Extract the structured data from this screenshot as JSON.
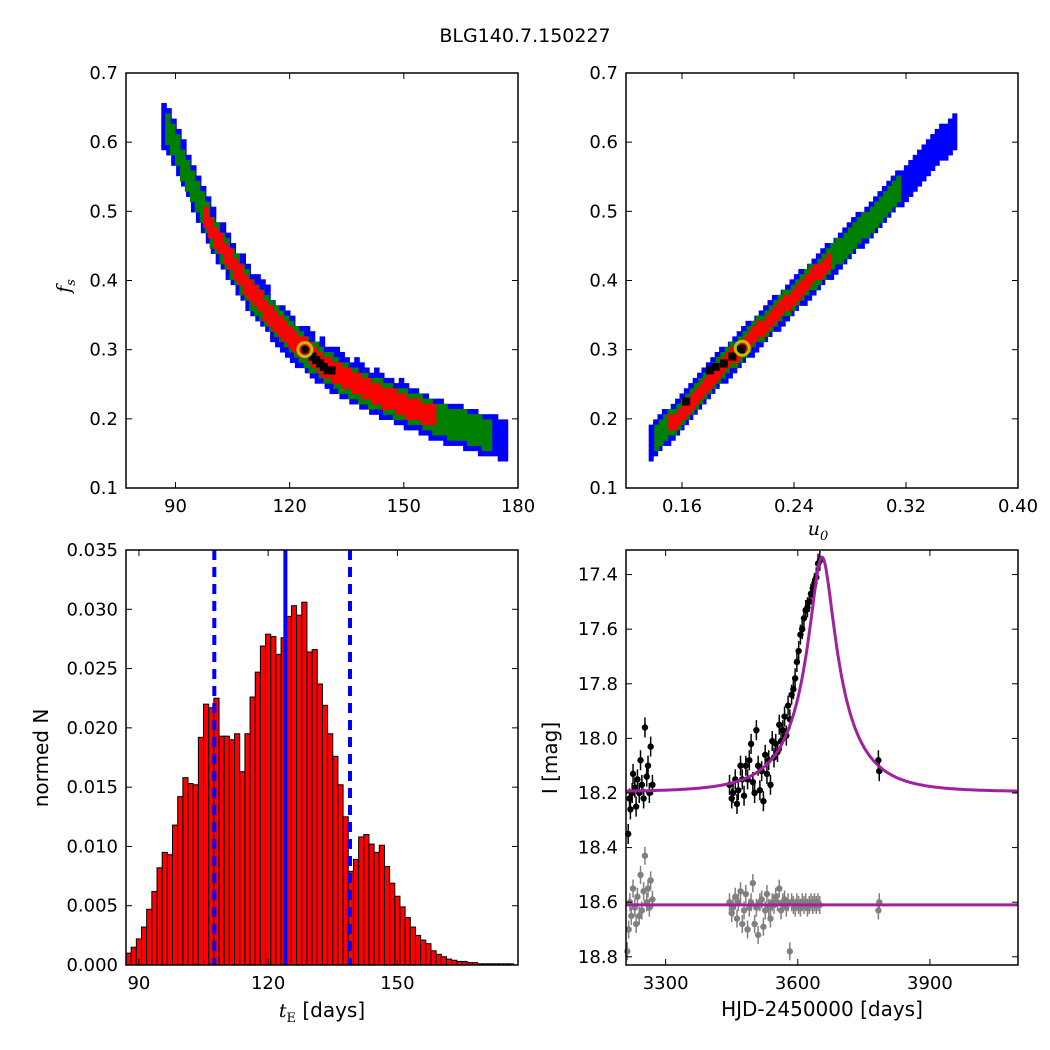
{
  "title": "BLG140.7.150227",
  "chart_data": [
    {
      "id": "tE_fs",
      "type": "heatmap",
      "xlim": [
        77,
        180
      ],
      "ylim": [
        0.1,
        0.7
      ],
      "xticks": [
        "90",
        "120",
        "150",
        "180"
      ],
      "xtick_values": [
        90,
        120,
        150,
        180
      ],
      "yticks": [
        "0.1",
        "0.2",
        "0.3",
        "0.4",
        "0.5",
        "0.6",
        "0.7"
      ],
      "ytick_values": [
        0.1,
        0.2,
        0.3,
        0.4,
        0.5,
        0.6,
        0.7
      ],
      "xlabel": "",
      "ylabel_main": "f",
      "ylabel_sub": "s",
      "confidence_colors": {
        "1sigma": "#ff0000",
        "2sigma": "#008000",
        "3sigma": "#0000ff",
        "best": "#000000"
      },
      "ridge": [
        [
          88,
          0.62
        ],
        [
          100,
          0.47
        ],
        [
          110,
          0.385
        ],
        [
          120,
          0.32
        ],
        [
          130,
          0.275
        ],
        [
          140,
          0.245
        ],
        [
          150,
          0.222
        ],
        [
          160,
          0.2
        ],
        [
          170,
          0.183
        ],
        [
          178,
          0.17
        ]
      ],
      "widths": {
        "sigma1": 0.013,
        "sigma2": 0.021,
        "sigma3": 0.03
      },
      "red_range": [
        98,
        158
      ],
      "green_range": [
        88,
        173
      ],
      "blue_range": [
        87,
        178
      ],
      "black_points": [
        [
          126,
          0.29
        ],
        [
          127,
          0.285
        ],
        [
          128,
          0.28
        ],
        [
          129,
          0.275
        ],
        [
          130,
          0.27
        ],
        [
          131,
          0.27
        ]
      ],
      "best_fit": [
        124,
        0.3
      ],
      "best_fit_colors": {
        "ring": "#bfbf00",
        "dot": "#000000"
      }
    },
    {
      "id": "u0_fs",
      "type": "heatmap",
      "xlim": [
        0.12,
        0.4
      ],
      "ylim": [
        0.1,
        0.7
      ],
      "xticks": [
        "0.16",
        "0.24",
        "0.32",
        "0.40"
      ],
      "xtick_values": [
        0.16,
        0.24,
        0.32,
        0.4
      ],
      "yticks": [
        "0.1",
        "0.2",
        "0.3",
        "0.4",
        "0.5",
        "0.6",
        "0.7"
      ],
      "ytick_values": [
        0.1,
        0.2,
        0.3,
        0.4,
        0.5,
        0.6,
        0.7
      ],
      "xlabel_main": "u",
      "xlabel_sub": "0",
      "ridge": [
        [
          0.138,
          0.17
        ],
        [
          0.16,
          0.21
        ],
        [
          0.18,
          0.26
        ],
        [
          0.2,
          0.3
        ],
        [
          0.22,
          0.34
        ],
        [
          0.24,
          0.38
        ],
        [
          0.26,
          0.42
        ],
        [
          0.28,
          0.46
        ],
        [
          0.3,
          0.5
        ],
        [
          0.32,
          0.545
        ],
        [
          0.34,
          0.59
        ],
        [
          0.356,
          0.62
        ]
      ],
      "widths": {
        "sigma1": 0.01,
        "sigma2": 0.017,
        "sigma3": 0.025
      },
      "red_range": [
        0.152,
        0.266
      ],
      "green_range": [
        0.142,
        0.316
      ],
      "blue_range": [
        0.138,
        0.358
      ],
      "black_points": [
        [
          0.163,
          0.225
        ],
        [
          0.18,
          0.27
        ],
        [
          0.184,
          0.275
        ],
        [
          0.19,
          0.28
        ],
        [
          0.196,
          0.29
        ],
        [
          0.202,
          0.3
        ]
      ],
      "best_fit": [
        0.203,
        0.302
      ],
      "best_fit_colors": {
        "ring": "#bfbf00",
        "dot": "#000000"
      }
    },
    {
      "id": "tE_hist",
      "type": "bar",
      "xlim": [
        87,
        178
      ],
      "ylim": [
        0,
        0.035
      ],
      "xticks": [
        "90",
        "120",
        "150"
      ],
      "xtick_values": [
        90,
        120,
        150
      ],
      "yticks": [
        "0.000",
        "0.005",
        "0.010",
        "0.015",
        "0.020",
        "0.025",
        "0.030",
        "0.035"
      ],
      "ytick_values": [
        0,
        0.005,
        0.01,
        0.015,
        0.02,
        0.025,
        0.03,
        0.035
      ],
      "xlabel_main": "t",
      "xlabel_sub": "E",
      "xlabel_unit": " [days]",
      "ylabel": "normed N",
      "bin_start": 87,
      "bin_width": 1.2,
      "bar_color": "#ff0000",
      "values": [
        0.001,
        0.0015,
        0.0022,
        0.0032,
        0.0047,
        0.0062,
        0.0082,
        0.0095,
        0.0093,
        0.0118,
        0.0142,
        0.0158,
        0.0153,
        0.0152,
        0.0192,
        0.022,
        0.0217,
        0.0225,
        0.0193,
        0.0193,
        0.019,
        0.0195,
        0.0163,
        0.0195,
        0.0226,
        0.0247,
        0.0269,
        0.0279,
        0.0277,
        0.0262,
        0.0276,
        0.0294,
        0.0303,
        0.0295,
        0.0306,
        0.0264,
        0.0266,
        0.0237,
        0.0219,
        0.0195,
        0.0176,
        0.0152,
        0.0125,
        0.0079,
        0.0089,
        0.0108,
        0.011,
        0.0102,
        0.0095,
        0.0101,
        0.0083,
        0.0069,
        0.0058,
        0.0049,
        0.004,
        0.0032,
        0.0025,
        0.0021,
        0.0018,
        0.0012,
        0.0009,
        0.0007,
        0.0005,
        0.0004,
        0.0003,
        0.0003,
        0.0002,
        0.0002,
        0.0001,
        0.0001,
        0.0001,
        0.0001,
        0.0001,
        0.0001,
        0.0001
      ],
      "median": 124,
      "lower": 107.5,
      "upper": 139,
      "line_color": "#0000ff"
    },
    {
      "id": "lightcurve",
      "type": "scatter",
      "xlim": [
        3210,
        4100
      ],
      "ylim": [
        18.83,
        17.31
      ],
      "xticks": [
        "3300",
        "3600",
        "3900"
      ],
      "xtick_values": [
        3300,
        3600,
        3900
      ],
      "yticks": [
        "17.4",
        "17.6",
        "17.8",
        "18.0",
        "18.2",
        "18.4",
        "18.6",
        "18.8"
      ],
      "ytick_values": [
        17.4,
        17.6,
        17.8,
        18.0,
        18.2,
        18.4,
        18.6,
        18.8
      ],
      "xlabel": "HJD-2450000 [days]",
      "ylabel": "I [mag]",
      "model": {
        "t0": 3655,
        "tE": 124,
        "u0": 0.203,
        "fs": 0.302,
        "I_base": 18.196,
        "residual_offset": 18.61
      },
      "model_color": "#a020a0",
      "data_color": "#000000",
      "residual_color": "#808080",
      "observations": [
        [
          3215,
          18.35
        ],
        [
          3218,
          18.22
        ],
        [
          3220,
          18.26
        ],
        [
          3224,
          18.2
        ],
        [
          3226,
          18.13
        ],
        [
          3230,
          18.18
        ],
        [
          3233,
          18.25
        ],
        [
          3236,
          18.15
        ],
        [
          3240,
          18.2
        ],
        [
          3243,
          18.08
        ],
        [
          3246,
          18.17
        ],
        [
          3250,
          18.22
        ],
        [
          3253,
          17.96
        ],
        [
          3257,
          18.14
        ],
        [
          3260,
          18.1
        ],
        [
          3263,
          18.2
        ],
        [
          3266,
          18.03
        ],
        [
          3270,
          18.17
        ],
        [
          3445,
          18.17
        ],
        [
          3450,
          18.22
        ],
        [
          3453,
          18.2
        ],
        [
          3458,
          18.15
        ],
        [
          3462,
          18.24
        ],
        [
          3465,
          18.19
        ],
        [
          3470,
          18.1
        ],
        [
          3474,
          18.15
        ],
        [
          3478,
          18.21
        ],
        [
          3482,
          18.1
        ],
        [
          3486,
          18.15
        ],
        [
          3490,
          18.08
        ],
        [
          3494,
          18.02
        ],
        [
          3498,
          18.16
        ],
        [
          3502,
          18.2
        ],
        [
          3506,
          17.97
        ],
        [
          3510,
          18.1
        ],
        [
          3514,
          18.19
        ],
        [
          3518,
          18.12
        ],
        [
          3522,
          18.23
        ],
        [
          3526,
          18.06
        ],
        [
          3530,
          18.13
        ],
        [
          3534,
          18.08
        ],
        [
          3538,
          18.17
        ],
        [
          3542,
          18.01
        ],
        [
          3546,
          18.07
        ],
        [
          3550,
          18.02
        ],
        [
          3554,
          18.05
        ],
        [
          3558,
          17.95
        ],
        [
          3562,
          18.01
        ],
        [
          3566,
          17.97
        ],
        [
          3570,
          17.92
        ],
        [
          3574,
          17.99
        ],
        [
          3578,
          17.88
        ],
        [
          3582,
          17.93
        ],
        [
          3586,
          17.84
        ],
        [
          3590,
          17.82
        ],
        [
          3594,
          17.78
        ],
        [
          3598,
          17.72
        ],
        [
          3602,
          17.68
        ],
        [
          3606,
          17.62
        ],
        [
          3610,
          17.6
        ],
        [
          3614,
          17.56
        ],
        [
          3618,
          17.53
        ],
        [
          3622,
          17.52
        ],
        [
          3626,
          17.5
        ],
        [
          3630,
          17.47
        ],
        [
          3634,
          17.45
        ],
        [
          3638,
          17.43
        ],
        [
          3642,
          17.41
        ],
        [
          3646,
          17.36
        ],
        [
          3650,
          17.35
        ],
        [
          3783,
          18.08
        ],
        [
          3785,
          18.12
        ]
      ],
      "residuals": [
        [
          3213,
          18.78
        ],
        [
          3216,
          18.7
        ],
        [
          3219,
          18.6
        ],
        [
          3222,
          18.65
        ],
        [
          3226,
          18.55
        ],
        [
          3230,
          18.62
        ],
        [
          3233,
          18.68
        ],
        [
          3236,
          18.58
        ],
        [
          3240,
          18.65
        ],
        [
          3243,
          18.5
        ],
        [
          3246,
          18.63
        ],
        [
          3250,
          18.56
        ],
        [
          3253,
          18.43
        ],
        [
          3257,
          18.6
        ],
        [
          3260,
          18.55
        ],
        [
          3263,
          18.62
        ],
        [
          3266,
          18.52
        ],
        [
          3270,
          18.59
        ],
        [
          3445,
          18.6
        ],
        [
          3450,
          18.64
        ],
        [
          3453,
          18.62
        ],
        [
          3458,
          18.58
        ],
        [
          3462,
          18.66
        ],
        [
          3465,
          18.6
        ],
        [
          3470,
          18.56
        ],
        [
          3474,
          18.68
        ],
        [
          3478,
          18.63
        ],
        [
          3482,
          18.57
        ],
        [
          3486,
          18.7
        ],
        [
          3490,
          18.62
        ],
        [
          3494,
          18.6
        ],
        [
          3498,
          18.53
        ],
        [
          3502,
          18.68
        ],
        [
          3506,
          18.62
        ],
        [
          3510,
          18.72
        ],
        [
          3514,
          18.6
        ],
        [
          3518,
          18.59
        ],
        [
          3522,
          18.69
        ],
        [
          3526,
          18.63
        ],
        [
          3530,
          18.57
        ],
        [
          3534,
          18.62
        ],
        [
          3538,
          18.66
        ],
        [
          3542,
          18.6
        ],
        [
          3546,
          18.61
        ],
        [
          3550,
          18.58
        ],
        [
          3554,
          18.6
        ],
        [
          3558,
          18.55
        ],
        [
          3562,
          18.63
        ],
        [
          3566,
          18.6
        ],
        [
          3570,
          18.59
        ],
        [
          3574,
          18.62
        ],
        [
          3578,
          18.6
        ],
        [
          3582,
          18.78
        ],
        [
          3586,
          18.6
        ],
        [
          3590,
          18.61
        ],
        [
          3594,
          18.62
        ],
        [
          3598,
          18.6
        ],
        [
          3602,
          18.61
        ],
        [
          3606,
          18.62
        ],
        [
          3610,
          18.6
        ],
        [
          3614,
          18.61
        ],
        [
          3618,
          18.6
        ],
        [
          3622,
          18.62
        ],
        [
          3626,
          18.61
        ],
        [
          3630,
          18.6
        ],
        [
          3634,
          18.61
        ],
        [
          3638,
          18.6
        ],
        [
          3642,
          18.61
        ],
        [
          3646,
          18.6
        ],
        [
          3650,
          18.61
        ],
        [
          3783,
          18.63
        ],
        [
          3785,
          18.6
        ]
      ]
    }
  ]
}
